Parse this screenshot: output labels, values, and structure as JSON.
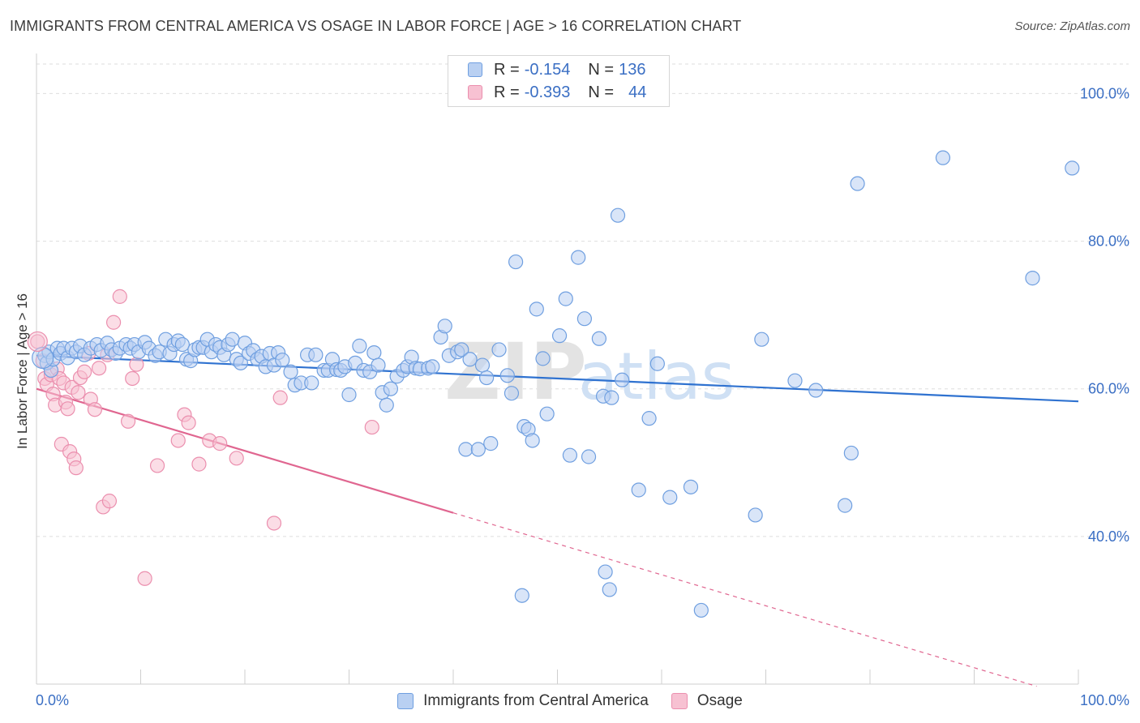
{
  "title": "IMMIGRANTS FROM CENTRAL AMERICA VS OSAGE IN LABOR FORCE | AGE > 16 CORRELATION CHART",
  "source": "Source: ZipAtlas.com",
  "legend": {
    "rows": [
      {
        "r_label": "R =",
        "r_value": "-0.154",
        "n_label": "N =",
        "n_value": "136"
      },
      {
        "r_label": "R =",
        "r_value": "-0.393",
        "n_label": "N =",
        "n_value": "44"
      }
    ]
  },
  "watermark": {
    "zip": "ZIP",
    "atlas": "atlas"
  },
  "colors": {
    "blue_fill": "#b9d0f2",
    "blue_stroke": "#6f9fe0",
    "blue_line": "#2f72d0",
    "pink_fill": "#f7c1d2",
    "pink_stroke": "#eb8fae",
    "pink_line": "#e06690",
    "tick_label": "#3b6fc4",
    "grid": "#dedede"
  },
  "chart_data": {
    "type": "scatter",
    "title": "IMMIGRANTS FROM CENTRAL AMERICA VS OSAGE IN LABOR FORCE | AGE > 16 CORRELATION CHART",
    "xlabel": "",
    "ylabel": "In Labor Force | Age > 16",
    "xlim": [
      0,
      100
    ],
    "ylim": [
      20,
      104
    ],
    "x_tick_labels": [
      "0.0%",
      "100.0%"
    ],
    "y_ticks": [
      40,
      60,
      80,
      100
    ],
    "y_tick_labels": [
      "40.0%",
      "60.0%",
      "80.0%",
      "100.0%"
    ],
    "grid": true,
    "legend_position": "bottom",
    "series": [
      {
        "name": "Immigrants from Central America",
        "r": -0.154,
        "n": 136,
        "trend": {
          "x0": 0,
          "y0": 64.5,
          "x1": 100,
          "y1": 58.3
        },
        "points": [
          [
            0.8,
            64.5
          ],
          [
            1.0,
            63.5
          ],
          [
            1.2,
            65.0
          ],
          [
            1.4,
            62.5
          ],
          [
            1.6,
            64.0
          ],
          [
            2.0,
            65.5
          ],
          [
            2.3,
            64.8
          ],
          [
            2.6,
            65.5
          ],
          [
            3.0,
            64.2
          ],
          [
            3.4,
            65.5
          ],
          [
            3.8,
            65.0
          ],
          [
            4.2,
            65.8
          ],
          [
            4.6,
            64.6
          ],
          [
            5.2,
            65.5
          ],
          [
            5.8,
            66.0
          ],
          [
            6.2,
            65.2
          ],
          [
            6.8,
            66.2
          ],
          [
            7.2,
            65.3
          ],
          [
            7.6,
            64.8
          ],
          [
            8.0,
            65.5
          ],
          [
            8.6,
            66.0
          ],
          [
            9.0,
            65.5
          ],
          [
            9.4,
            66.0
          ],
          [
            9.8,
            65.0
          ],
          [
            10.4,
            66.3
          ],
          [
            10.8,
            65.5
          ],
          [
            11.4,
            64.5
          ],
          [
            11.8,
            65.0
          ],
          [
            12.4,
            66.7
          ],
          [
            12.8,
            64.8
          ],
          [
            13.2,
            66.0
          ],
          [
            13.6,
            66.5
          ],
          [
            14.0,
            66.0
          ],
          [
            14.4,
            64.0
          ],
          [
            14.8,
            63.8
          ],
          [
            15.2,
            65.3
          ],
          [
            15.6,
            65.6
          ],
          [
            16.0,
            65.6
          ],
          [
            16.4,
            66.7
          ],
          [
            16.8,
            65.0
          ],
          [
            17.2,
            66.0
          ],
          [
            17.6,
            65.6
          ],
          [
            18.0,
            64.6
          ],
          [
            18.4,
            66.0
          ],
          [
            18.8,
            66.7
          ],
          [
            19.2,
            64.0
          ],
          [
            19.6,
            63.5
          ],
          [
            20.0,
            66.2
          ],
          [
            20.4,
            64.8
          ],
          [
            20.8,
            65.2
          ],
          [
            21.2,
            64.0
          ],
          [
            21.6,
            64.4
          ],
          [
            22.0,
            63.0
          ],
          [
            22.4,
            64.8
          ],
          [
            22.8,
            63.2
          ],
          [
            23.2,
            64.9
          ],
          [
            23.6,
            63.9
          ],
          [
            24.4,
            62.3
          ],
          [
            24.8,
            60.5
          ],
          [
            25.4,
            60.8
          ],
          [
            26.0,
            64.6
          ],
          [
            26.4,
            60.8
          ],
          [
            26.8,
            64.6
          ],
          [
            27.6,
            62.5
          ],
          [
            28.0,
            62.5
          ],
          [
            28.4,
            64.0
          ],
          [
            28.8,
            62.6
          ],
          [
            29.2,
            62.5
          ],
          [
            29.6,
            63.0
          ],
          [
            30.0,
            59.2
          ],
          [
            30.6,
            63.5
          ],
          [
            31.0,
            65.8
          ],
          [
            31.4,
            62.5
          ],
          [
            32.0,
            62.3
          ],
          [
            32.4,
            64.9
          ],
          [
            32.8,
            63.2
          ],
          [
            33.2,
            59.5
          ],
          [
            33.6,
            57.8
          ],
          [
            34.0,
            60.0
          ],
          [
            34.6,
            61.7
          ],
          [
            35.2,
            62.5
          ],
          [
            35.6,
            63.0
          ],
          [
            36.0,
            64.3
          ],
          [
            36.4,
            62.8
          ],
          [
            36.8,
            62.7
          ],
          [
            37.6,
            62.8
          ],
          [
            38.0,
            63.0
          ],
          [
            38.8,
            67.0
          ],
          [
            39.2,
            68.5
          ],
          [
            39.6,
            64.5
          ],
          [
            40.4,
            65.0
          ],
          [
            40.8,
            65.3
          ],
          [
            41.2,
            51.8
          ],
          [
            41.6,
            64.0
          ],
          [
            42.4,
            51.8
          ],
          [
            42.8,
            63.2
          ],
          [
            43.2,
            61.5
          ],
          [
            43.6,
            52.6
          ],
          [
            44.4,
            65.3
          ],
          [
            45.2,
            61.8
          ],
          [
            45.6,
            59.4
          ],
          [
            46.0,
            77.2
          ],
          [
            46.8,
            54.9
          ],
          [
            47.2,
            54.5
          ],
          [
            47.6,
            53.0
          ],
          [
            48.0,
            70.8
          ],
          [
            48.6,
            64.1
          ],
          [
            49.0,
            56.6
          ],
          [
            50.2,
            67.2
          ],
          [
            50.8,
            72.2
          ],
          [
            51.2,
            51.0
          ],
          [
            52.0,
            77.8
          ],
          [
            52.6,
            69.5
          ],
          [
            53.0,
            50.8
          ],
          [
            54.0,
            66.8
          ],
          [
            54.4,
            59.0
          ],
          [
            55.2,
            58.8
          ],
          [
            55.8,
            83.5
          ],
          [
            56.2,
            61.2
          ],
          [
            57.8,
            46.3
          ],
          [
            58.8,
            56.0
          ],
          [
            59.6,
            63.4
          ],
          [
            60.8,
            45.3
          ],
          [
            62.8,
            46.7
          ],
          [
            63.8,
            30.0
          ],
          [
            69.0,
            42.9
          ],
          [
            69.6,
            66.7
          ],
          [
            72.8,
            61.1
          ],
          [
            74.8,
            59.8
          ],
          [
            77.6,
            44.2
          ],
          [
            78.2,
            51.3
          ],
          [
            78.8,
            87.8
          ],
          [
            87.0,
            91.3
          ],
          [
            95.6,
            75.0
          ],
          [
            99.4,
            89.9
          ],
          [
            46.6,
            32.0
          ],
          [
            54.6,
            35.2
          ],
          [
            55.0,
            32.8
          ]
        ]
      },
      {
        "name": "Osage",
        "r": -0.393,
        "n": 44,
        "trend": {
          "x0": 0,
          "y0": 60.0,
          "x1": 40,
          "y1": 43.2,
          "dash_x1": 96.0,
          "dash_y1": 19.7
        },
        "points": [
          [
            0.1,
            66.4
          ],
          [
            0.6,
            63.8
          ],
          [
            0.8,
            61.4
          ],
          [
            1.0,
            60.6
          ],
          [
            1.4,
            61.9
          ],
          [
            1.6,
            59.3
          ],
          [
            1.8,
            57.8
          ],
          [
            2.0,
            62.7
          ],
          [
            2.2,
            61.4
          ],
          [
            2.4,
            52.5
          ],
          [
            2.6,
            60.8
          ],
          [
            2.8,
            58.2
          ],
          [
            3.0,
            57.3
          ],
          [
            3.2,
            51.5
          ],
          [
            3.4,
            60.2
          ],
          [
            3.6,
            50.5
          ],
          [
            3.8,
            49.3
          ],
          [
            4.0,
            59.5
          ],
          [
            4.2,
            61.5
          ],
          [
            4.6,
            62.3
          ],
          [
            5.0,
            64.8
          ],
          [
            5.2,
            58.6
          ],
          [
            5.6,
            57.2
          ],
          [
            6.0,
            62.8
          ],
          [
            6.4,
            44.0
          ],
          [
            6.8,
            64.6
          ],
          [
            7.0,
            44.8
          ],
          [
            7.4,
            69.0
          ],
          [
            8.0,
            72.5
          ],
          [
            8.8,
            55.6
          ],
          [
            9.2,
            61.4
          ],
          [
            9.6,
            63.3
          ],
          [
            10.4,
            34.3
          ],
          [
            11.6,
            49.6
          ],
          [
            13.6,
            53.0
          ],
          [
            14.2,
            56.5
          ],
          [
            14.6,
            55.4
          ],
          [
            15.6,
            49.8
          ],
          [
            16.6,
            53.0
          ],
          [
            17.6,
            52.6
          ],
          [
            19.2,
            50.6
          ],
          [
            22.8,
            41.8
          ],
          [
            23.4,
            58.8
          ],
          [
            32.2,
            54.8
          ]
        ]
      }
    ]
  }
}
